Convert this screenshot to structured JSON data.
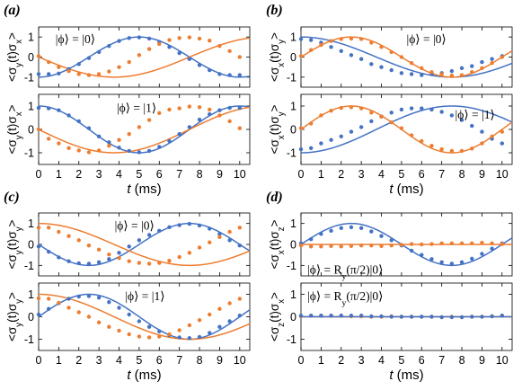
{
  "colors": {
    "blue": "#4472c4",
    "orange": "#ed7d31"
  },
  "chart_data": [
    {
      "type": "scatter",
      "panel_label": "(a)",
      "state_label": "|ϕ⟩ = |0⟩",
      "ylabel": "<σ_y(t)σ_x>",
      "ylim": [
        -1.5,
        1.5
      ],
      "xlim": [
        0,
        10.5
      ],
      "yticks": [
        "-1",
        "0",
        "1"
      ],
      "series": [
        {
          "color": "blue",
          "fit": {
            "amp": -1,
            "fn": "cos",
            "omega": 0.6283,
            "offset": 0
          },
          "x": [
            0.0,
            0.5,
            1.0,
            1.5,
            2.0,
            2.5,
            3.0,
            3.5,
            4.0,
            4.5,
            5.0,
            5.5,
            6.0,
            6.5,
            7.0,
            7.5,
            8.0,
            8.5,
            9.0,
            9.5,
            10.0
          ],
          "y": [
            -0.85,
            -0.85,
            -0.82,
            -0.6,
            -0.35,
            -0.05,
            0.25,
            0.55,
            0.8,
            0.95,
            0.98,
            0.92,
            0.75,
            0.5,
            0.2,
            -0.1,
            -0.4,
            -0.65,
            -0.85,
            -0.9,
            -0.9
          ]
        },
        {
          "color": "orange",
          "fit": {
            "amp": -1,
            "fn": "sin",
            "omega": 0.4188,
            "offset": 0
          },
          "x": [
            0.0,
            0.5,
            1.0,
            1.5,
            2.0,
            2.5,
            3.0,
            3.5,
            4.0,
            4.5,
            5.0,
            5.5,
            6.0,
            6.5,
            7.0,
            7.5,
            8.0,
            8.5,
            9.0,
            9.5,
            10.0
          ],
          "y": [
            0.05,
            -0.25,
            -0.5,
            -0.7,
            -0.85,
            -0.9,
            -0.85,
            -0.72,
            -0.5,
            -0.25,
            0.1,
            0.4,
            0.65,
            0.85,
            0.95,
            0.98,
            0.92,
            0.82,
            0.55,
            0.3,
            0.0
          ]
        }
      ]
    },
    {
      "type": "scatter",
      "panel_label": "",
      "state_label": "|ϕ⟩ = |1⟩",
      "ylabel": "<σ_y(t)σ_x>",
      "ylim": [
        -1.5,
        1.5
      ],
      "xlim": [
        0,
        10.5
      ],
      "yticks": [
        "-1",
        "0",
        "1"
      ],
      "series": [
        {
          "color": "blue",
          "fit": {
            "amp": 1,
            "fn": "cos",
            "omega": 0.6283,
            "offset": 0
          },
          "x": [
            0.0,
            0.5,
            1.0,
            1.5,
            2.0,
            2.5,
            3.0,
            3.5,
            4.0,
            4.5,
            5.0,
            5.5,
            6.0,
            6.5,
            7.0,
            7.5,
            8.0,
            8.5,
            9.0,
            9.5,
            10.0
          ],
          "y": [
            0.92,
            0.9,
            0.82,
            0.6,
            0.35,
            0.05,
            -0.3,
            -0.55,
            -0.78,
            -0.92,
            -0.98,
            -0.92,
            -0.75,
            -0.5,
            -0.2,
            0.1,
            0.42,
            0.65,
            0.82,
            0.92,
            0.92
          ]
        },
        {
          "color": "orange",
          "fit": {
            "amp": -1,
            "fn": "sin",
            "omega": 0.4188,
            "offset": 0
          },
          "x": [
            0.0,
            0.5,
            1.0,
            1.5,
            2.0,
            2.5,
            3.0,
            3.5,
            4.0,
            4.5,
            5.0,
            5.5,
            6.0,
            6.5,
            7.0,
            7.5,
            8.0,
            8.5,
            9.0,
            9.5,
            10.0
          ],
          "y": [
            0.0,
            -0.4,
            -0.6,
            -0.8,
            -0.9,
            -0.98,
            -0.9,
            -0.7,
            -0.45,
            -0.2,
            0.1,
            0.4,
            0.7,
            0.85,
            0.9,
            0.98,
            0.95,
            0.85,
            0.6,
            0.35,
            0.05
          ]
        }
      ]
    },
    {
      "type": "scatter",
      "panel_label": "(b)",
      "state_label": "|ϕ⟩ = |0⟩",
      "ylabel": "<σ_x(t)σ_y>",
      "ylim": [
        -1.5,
        1.5
      ],
      "xlim": [
        0,
        10.5
      ],
      "yticks": [
        "-1",
        "0",
        "1"
      ],
      "series": [
        {
          "color": "blue",
          "fit": {
            "amp": 1,
            "fn": "cos",
            "omega": 0.4188,
            "offset": 0
          },
          "x": [
            0.0,
            0.5,
            1.0,
            1.5,
            2.0,
            2.5,
            3.0,
            3.5,
            4.0,
            4.5,
            5.0,
            5.5,
            6.0,
            6.5,
            7.0,
            7.5,
            8.0,
            8.5,
            9.0,
            9.5,
            10.0
          ],
          "y": [
            0.9,
            0.85,
            0.72,
            0.5,
            0.3,
            0.1,
            -0.1,
            -0.35,
            -0.5,
            -0.65,
            -0.8,
            -0.85,
            -0.9,
            -0.85,
            -0.8,
            -0.7,
            -0.55,
            -0.45,
            -0.25,
            -0.1,
            0.05
          ]
        },
        {
          "color": "orange",
          "fit": {
            "amp": 1,
            "fn": "sin",
            "omega": 0.6283,
            "offset": 0
          },
          "x": [
            0.0,
            0.5,
            1.0,
            1.5,
            2.0,
            2.5,
            3.0,
            3.5,
            4.0,
            4.5,
            5.0,
            5.5,
            6.0,
            6.5,
            7.0,
            7.5,
            8.0,
            8.5,
            9.0,
            9.5,
            10.0
          ],
          "y": [
            0.05,
            0.35,
            0.6,
            0.8,
            0.9,
            0.92,
            0.9,
            0.72,
            0.5,
            0.25,
            0.0,
            -0.3,
            -0.55,
            -0.75,
            -0.85,
            -0.92,
            -0.9,
            -0.75,
            -0.55,
            -0.3,
            0.0
          ]
        }
      ]
    },
    {
      "type": "scatter",
      "panel_label": "",
      "state_label": "|ϕ⟩ = |1⟩",
      "ylabel": "<σ_x(t)σ_y>",
      "ylim": [
        -1.5,
        1.5
      ],
      "xlim": [
        0,
        10.5
      ],
      "yticks": [
        "-1",
        "0",
        "1"
      ],
      "series": [
        {
          "color": "blue",
          "fit": {
            "amp": -1,
            "fn": "cos",
            "omega": 0.4188,
            "offset": 0
          },
          "x": [
            0.0,
            0.5,
            1.0,
            1.5,
            2.0,
            2.5,
            3.0,
            3.5,
            4.0,
            4.5,
            5.0,
            5.5,
            6.0,
            6.5,
            7.0,
            7.5,
            8.0,
            8.5,
            9.0,
            9.5,
            10.0
          ],
          "y": [
            -0.85,
            -0.8,
            -0.6,
            -0.45,
            -0.3,
            -0.1,
            0.1,
            0.35,
            0.55,
            0.72,
            0.85,
            0.9,
            0.9,
            0.85,
            0.75,
            0.6,
            0.4,
            0.15,
            -0.1,
            -0.4,
            -0.6
          ]
        },
        {
          "color": "orange",
          "fit": {
            "amp": 1,
            "fn": "sin",
            "omega": 0.6283,
            "offset": 0
          },
          "x": [
            0.0,
            0.5,
            1.0,
            1.5,
            2.0,
            2.5,
            3.0,
            3.5,
            4.0,
            4.5,
            5.0,
            5.5,
            6.0,
            6.5,
            7.0,
            7.5,
            8.0,
            8.5,
            9.0,
            9.5,
            10.0
          ],
          "y": [
            0.05,
            0.25,
            0.6,
            0.8,
            0.92,
            0.95,
            0.9,
            0.72,
            0.55,
            0.3,
            0.05,
            -0.25,
            -0.5,
            -0.7,
            -0.85,
            -0.92,
            -0.92,
            -0.82,
            -0.6,
            -0.3,
            -0.1
          ]
        }
      ]
    },
    {
      "type": "scatter",
      "panel_label": "(c)",
      "state_label": "|ϕ⟩ = |0⟩",
      "ylabel": "<σ_y(t)σ_y>",
      "ylim": [
        -1.5,
        1.5
      ],
      "xlim": [
        0,
        10.5
      ],
      "yticks": [
        "-1",
        "0",
        "1"
      ],
      "series": [
        {
          "color": "blue",
          "fit": {
            "amp": -1,
            "fn": "sin",
            "omega": 0.6283,
            "offset": 0
          },
          "x": [
            0.0,
            0.5,
            1.0,
            1.5,
            2.0,
            2.5,
            3.0,
            3.5,
            4.0,
            4.5,
            5.0,
            5.5,
            6.0,
            6.5,
            7.0,
            7.5,
            8.0,
            8.5,
            9.0,
            9.5,
            10.0
          ],
          "y": [
            -0.1,
            -0.35,
            -0.62,
            -0.8,
            -0.9,
            -0.92,
            -0.85,
            -0.7,
            -0.4,
            -0.1,
            0.2,
            0.45,
            0.65,
            0.82,
            0.92,
            0.98,
            0.9,
            0.75,
            0.5,
            0.2,
            -0.05
          ]
        },
        {
          "color": "orange",
          "fit": {
            "amp": 1,
            "fn": "cos",
            "omega": 0.4188,
            "offset": 0
          },
          "x": [
            0.0,
            0.5,
            1.0,
            1.5,
            2.0,
            2.5,
            3.0,
            3.5,
            4.0,
            4.5,
            5.0,
            5.5,
            6.0,
            6.5,
            7.0,
            7.5,
            8.0,
            8.5,
            9.0,
            9.5,
            10.0
          ],
          "y": [
            0.8,
            0.8,
            0.6,
            0.4,
            0.2,
            -0.05,
            -0.25,
            -0.48,
            -0.65,
            -0.8,
            -0.88,
            -0.92,
            -0.88,
            -0.78,
            -0.6,
            -0.4,
            -0.15,
            0.1,
            0.35,
            0.6,
            0.8
          ]
        }
      ]
    },
    {
      "type": "scatter",
      "panel_label": "",
      "state_label": "|ϕ⟩ = |1⟩",
      "ylabel": "<σ_y(t)σ_y>",
      "ylim": [
        -1.5,
        1.5
      ],
      "xlim": [
        0,
        10.5
      ],
      "yticks": [
        "-1",
        "0",
        "1"
      ],
      "series": [
        {
          "color": "blue",
          "fit": {
            "amp": 1,
            "fn": "sin",
            "omega": 0.6283,
            "offset": 0
          },
          "x": [
            0.0,
            0.5,
            1.0,
            1.5,
            2.0,
            2.5,
            3.0,
            3.5,
            4.0,
            4.5,
            5.0,
            5.5,
            6.0,
            6.5,
            7.0,
            7.5,
            8.0,
            8.5,
            9.0,
            9.5,
            10.0
          ],
          "y": [
            0.1,
            0.35,
            0.6,
            0.8,
            0.9,
            0.92,
            0.85,
            0.65,
            0.4,
            0.1,
            -0.2,
            -0.45,
            -0.65,
            -0.82,
            -0.92,
            -0.95,
            -0.9,
            -0.72,
            -0.45,
            -0.2,
            0.05
          ]
        },
        {
          "color": "orange",
          "fit": {
            "amp": 1,
            "fn": "cos",
            "omega": 0.4188,
            "offset": 0
          },
          "x": [
            0.0,
            0.5,
            1.0,
            1.5,
            2.0,
            2.5,
            3.0,
            3.5,
            4.0,
            4.5,
            5.0,
            5.5,
            6.0,
            6.5,
            7.0,
            7.5,
            8.0,
            8.5,
            9.0,
            9.5,
            10.0
          ],
          "y": [
            0.82,
            0.8,
            0.62,
            0.4,
            0.2,
            0.0,
            -0.25,
            -0.45,
            -0.62,
            -0.78,
            -0.88,
            -0.92,
            -0.88,
            -0.78,
            -0.6,
            -0.38,
            -0.15,
            0.1,
            0.35,
            0.6,
            0.8
          ]
        }
      ]
    },
    {
      "type": "scatter",
      "panel_label": "(d)",
      "state_label": "|ϕ⟩ = R_y(π/2)|0⟩",
      "ylabel": "<σ_x(t)σ_z>",
      "ylim": [
        -1.5,
        1.5
      ],
      "xlim": [
        0,
        10.5
      ],
      "yticks": [
        "-1",
        "0",
        "1"
      ],
      "series": [
        {
          "color": "blue",
          "fit": {
            "amp": 1,
            "fn": "sin",
            "omega": 0.6283,
            "offset": 0
          },
          "x": [
            0.0,
            0.5,
            1.0,
            1.5,
            2.0,
            2.5,
            3.0,
            3.5,
            4.0,
            4.5,
            5.0,
            5.5,
            6.0,
            6.5,
            7.0,
            7.5,
            8.0,
            8.5,
            9.0,
            9.5,
            10.0
          ],
          "y": [
            0.05,
            0.25,
            0.5,
            0.65,
            0.78,
            0.82,
            0.78,
            0.62,
            0.4,
            0.2,
            -0.05,
            -0.3,
            -0.5,
            -0.7,
            -0.85,
            -0.92,
            -0.85,
            -0.68,
            -0.45,
            -0.2,
            0.05
          ]
        },
        {
          "color": "orange",
          "fit": {
            "amp": 0,
            "fn": "const",
            "omega": 0,
            "offset": 0
          },
          "x": [
            0.0,
            0.5,
            1.0,
            1.5,
            2.0,
            2.5,
            3.0,
            3.5,
            4.0,
            4.5,
            5.0,
            5.5,
            6.0,
            6.5,
            7.0,
            7.5,
            8.0,
            8.5,
            9.0,
            9.5,
            10.0
          ],
          "y": [
            -0.05,
            -0.1,
            -0.1,
            -0.08,
            -0.1,
            -0.08,
            -0.05,
            -0.05,
            -0.08,
            -0.05,
            -0.02,
            0.02,
            0.0,
            0.02,
            0.05,
            0.05,
            0.05,
            0.05,
            0.08,
            0.05,
            0.02
          ]
        }
      ]
    },
    {
      "type": "scatter",
      "panel_label": "",
      "state_label": "|ϕ⟩ = R_y(π/2)|0⟩",
      "ylabel": "<σ_z(t)σ_x>",
      "ylim": [
        -1.5,
        1.5
      ],
      "xlim": [
        0,
        10.5
      ],
      "yticks": [
        "-1",
        "0",
        "1"
      ],
      "series": [
        {
          "color": "orange",
          "fit": {
            "amp": 0,
            "fn": "const",
            "omega": 0,
            "offset": 0
          },
          "x": [
            0.0,
            0.5,
            1.0,
            1.5,
            2.0,
            2.5,
            3.0,
            3.5,
            4.0,
            4.5,
            5.0,
            5.5,
            6.0,
            6.5,
            7.0,
            7.5,
            8.0,
            8.5,
            9.0,
            9.5,
            10.0
          ],
          "y": [
            0.02,
            0.05,
            0.05,
            0.05,
            0.05,
            0.02,
            0.02,
            0.0,
            0.0,
            0.02,
            0.0,
            0.0,
            0.0,
            0.0,
            -0.02,
            0.0,
            -0.02,
            0.0,
            0.0,
            0.02,
            0.05
          ]
        },
        {
          "color": "blue",
          "fit": {
            "amp": 0,
            "fn": "const",
            "omega": 0,
            "offset": 0
          },
          "x": [
            0.0,
            0.5,
            1.0,
            1.5,
            2.0,
            2.5,
            3.0,
            3.5,
            4.0,
            4.5,
            5.0,
            5.5,
            6.0,
            6.5,
            7.0,
            7.5,
            8.0,
            8.5,
            9.0,
            9.5,
            10.0
          ],
          "y": [
            0.05,
            0.05,
            0.05,
            0.05,
            0.05,
            0.05,
            0.05,
            0.02,
            0.02,
            0.0,
            0.0,
            0.0,
            0.0,
            0.0,
            -0.02,
            -0.02,
            -0.02,
            0.0,
            0.0,
            0.02,
            0.05
          ]
        }
      ]
    }
  ],
  "xaxis": {
    "ticks": [
      "0",
      "1",
      "2",
      "3",
      "4",
      "5",
      "6",
      "7",
      "8",
      "9",
      "10"
    ],
    "label_italic": "t",
    "label_unit": "(ms)"
  }
}
